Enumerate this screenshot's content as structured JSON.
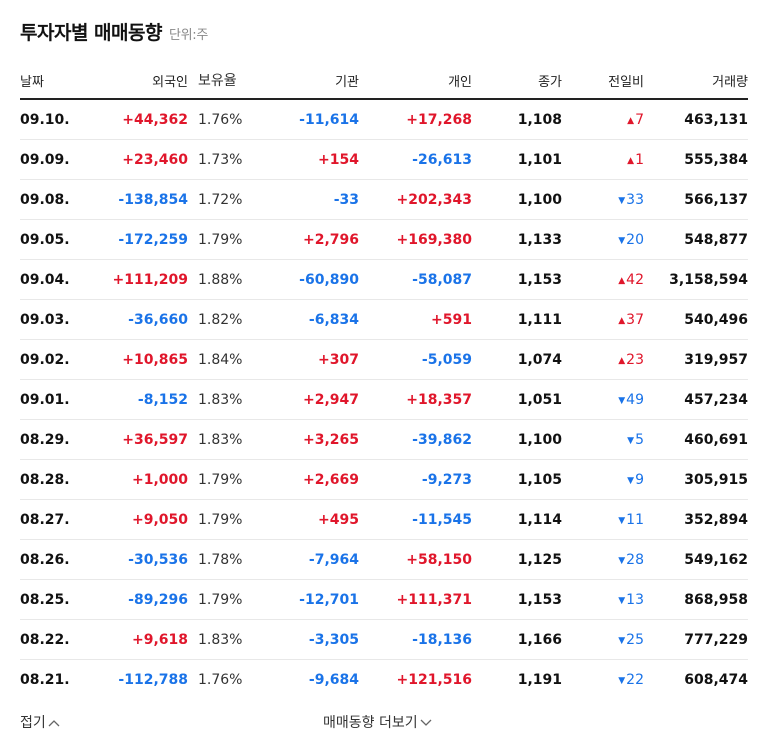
{
  "header": {
    "title": "투자자별 매매동향",
    "unit": "단위:주"
  },
  "columns": [
    "날짜",
    "외국인",
    "보유율",
    "기관",
    "개인",
    "종가",
    "전일비",
    "거래량"
  ],
  "rows": [
    {
      "date": "09.10.",
      "foreign": "+44,362",
      "ratio": "1.76%",
      "inst": "-11,614",
      "indiv": "+17,268",
      "close": "1,108",
      "chg_dir": "up",
      "chg": "7",
      "volume": "463,131"
    },
    {
      "date": "09.09.",
      "foreign": "+23,460",
      "ratio": "1.73%",
      "inst": "+154",
      "indiv": "-26,613",
      "close": "1,101",
      "chg_dir": "up",
      "chg": "1",
      "volume": "555,384"
    },
    {
      "date": "09.08.",
      "foreign": "-138,854",
      "ratio": "1.72%",
      "inst": "-33",
      "indiv": "+202,343",
      "close": "1,100",
      "chg_dir": "down",
      "chg": "33",
      "volume": "566,137"
    },
    {
      "date": "09.05.",
      "foreign": "-172,259",
      "ratio": "1.79%",
      "inst": "+2,796",
      "indiv": "+169,380",
      "close": "1,133",
      "chg_dir": "down",
      "chg": "20",
      "volume": "548,877"
    },
    {
      "date": "09.04.",
      "foreign": "+111,209",
      "ratio": "1.88%",
      "inst": "-60,890",
      "indiv": "-58,087",
      "close": "1,153",
      "chg_dir": "up",
      "chg": "42",
      "volume": "3,158,594"
    },
    {
      "date": "09.03.",
      "foreign": "-36,660",
      "ratio": "1.82%",
      "inst": "-6,834",
      "indiv": "+591",
      "close": "1,111",
      "chg_dir": "up",
      "chg": "37",
      "volume": "540,496"
    },
    {
      "date": "09.02.",
      "foreign": "+10,865",
      "ratio": "1.84%",
      "inst": "+307",
      "indiv": "-5,059",
      "close": "1,074",
      "chg_dir": "up",
      "chg": "23",
      "volume": "319,957"
    },
    {
      "date": "09.01.",
      "foreign": "-8,152",
      "ratio": "1.83%",
      "inst": "+2,947",
      "indiv": "+18,357",
      "close": "1,051",
      "chg_dir": "down",
      "chg": "49",
      "volume": "457,234"
    },
    {
      "date": "08.29.",
      "foreign": "+36,597",
      "ratio": "1.83%",
      "inst": "+3,265",
      "indiv": "-39,862",
      "close": "1,100",
      "chg_dir": "down",
      "chg": "5",
      "volume": "460,691"
    },
    {
      "date": "08.28.",
      "foreign": "+1,000",
      "ratio": "1.79%",
      "inst": "+2,669",
      "indiv": "-9,273",
      "close": "1,105",
      "chg_dir": "down",
      "chg": "9",
      "volume": "305,915"
    },
    {
      "date": "08.27.",
      "foreign": "+9,050",
      "ratio": "1.79%",
      "inst": "+495",
      "indiv": "-11,545",
      "close": "1,114",
      "chg_dir": "down",
      "chg": "11",
      "volume": "352,894"
    },
    {
      "date": "08.26.",
      "foreign": "-30,536",
      "ratio": "1.78%",
      "inst": "-7,964",
      "indiv": "+58,150",
      "close": "1,125",
      "chg_dir": "down",
      "chg": "28",
      "volume": "549,162"
    },
    {
      "date": "08.25.",
      "foreign": "-89,296",
      "ratio": "1.79%",
      "inst": "-12,701",
      "indiv": "+111,371",
      "close": "1,153",
      "chg_dir": "down",
      "chg": "13",
      "volume": "868,958"
    },
    {
      "date": "08.22.",
      "foreign": "+9,618",
      "ratio": "1.83%",
      "inst": "-3,305",
      "indiv": "-18,136",
      "close": "1,166",
      "chg_dir": "down",
      "chg": "25",
      "volume": "777,229"
    },
    {
      "date": "08.21.",
      "foreign": "-112,788",
      "ratio": "1.76%",
      "inst": "-9,684",
      "indiv": "+121,516",
      "close": "1,191",
      "chg_dir": "down",
      "chg": "22",
      "volume": "608,474"
    }
  ],
  "footer": {
    "fold_label": "접기",
    "more_label": "매매동향 더보기"
  },
  "colors": {
    "up": "#e0162b",
    "down": "#1a73e8"
  },
  "icons": {
    "up": "triangle-up-icon",
    "down": "triangle-down-icon",
    "fold": "chevron-up-icon",
    "more": "chevron-down-icon"
  }
}
